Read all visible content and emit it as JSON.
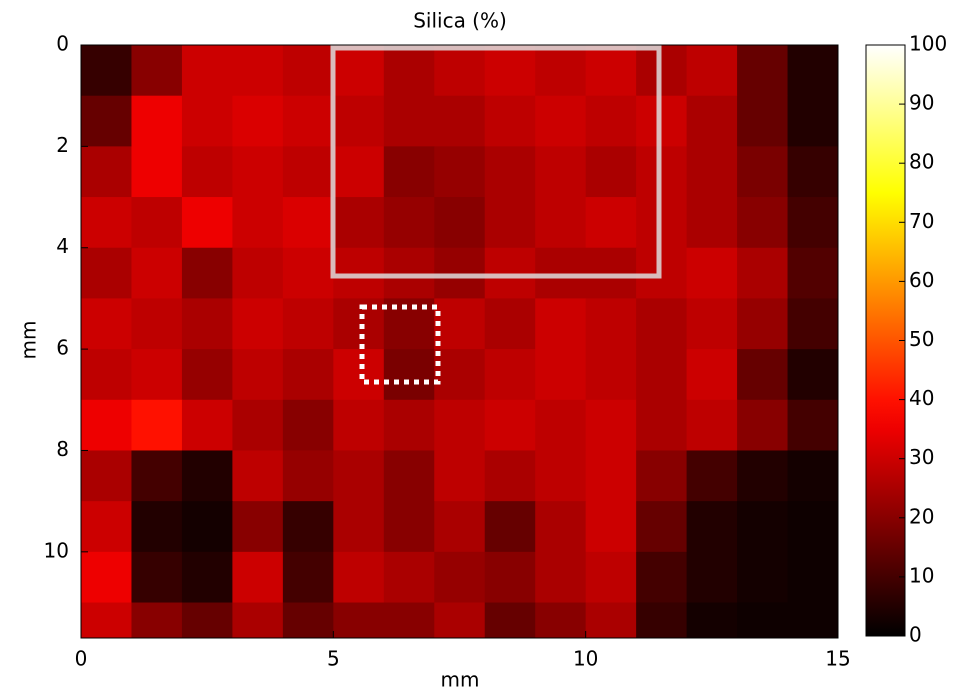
{
  "chart_data": {
    "type": "heatmap",
    "title": "Silica (%)",
    "xlabel": "mm",
    "ylabel": "mm",
    "colormap": "hot",
    "xbins": [
      0,
      1,
      2,
      3,
      4,
      5,
      6,
      7,
      8,
      9,
      10,
      11,
      12,
      13,
      14,
      15
    ],
    "ybins": [
      0,
      1,
      2,
      3,
      4,
      5,
      6,
      7,
      8,
      9,
      10,
      11,
      11.7
    ],
    "z": [
      [
        8,
        20,
        30,
        30,
        28,
        30,
        25,
        28,
        30,
        28,
        30,
        25,
        28,
        15,
        5
      ],
      [
        15,
        35,
        30,
        32,
        30,
        28,
        25,
        25,
        28,
        30,
        28,
        30,
        25,
        15,
        5
      ],
      [
        25,
        35,
        28,
        30,
        28,
        30,
        20,
        22,
        25,
        28,
        25,
        28,
        25,
        18,
        8
      ],
      [
        30,
        28,
        35,
        30,
        32,
        25,
        22,
        20,
        25,
        28,
        30,
        28,
        25,
        20,
        10
      ],
      [
        25,
        30,
        20,
        28,
        30,
        28,
        25,
        22,
        28,
        25,
        25,
        28,
        30,
        25,
        12
      ],
      [
        30,
        28,
        25,
        30,
        28,
        25,
        20,
        28,
        25,
        30,
        28,
        25,
        28,
        22,
        10
      ],
      [
        28,
        30,
        22,
        28,
        25,
        30,
        18,
        25,
        28,
        30,
        28,
        25,
        30,
        15,
        5
      ],
      [
        35,
        40,
        30,
        25,
        20,
        28,
        25,
        28,
        30,
        28,
        30,
        25,
        28,
        20,
        10
      ],
      [
        25,
        10,
        5,
        28,
        22,
        25,
        20,
        28,
        25,
        28,
        30,
        20,
        10,
        5,
        3
      ],
      [
        30,
        5,
        3,
        20,
        8,
        25,
        20,
        25,
        15,
        25,
        30,
        15,
        5,
        3,
        2
      ],
      [
        35,
        8,
        5,
        30,
        10,
        28,
        25,
        22,
        20,
        25,
        28,
        10,
        5,
        3,
        2
      ],
      [
        30,
        20,
        15,
        25,
        15,
        20,
        20,
        25,
        15,
        20,
        25,
        8,
        3,
        2,
        2
      ]
    ],
    "xlim": [
      0,
      15
    ],
    "ylim": [
      0,
      11.7
    ],
    "xticks": [
      0,
      5,
      10,
      15
    ],
    "yticks": [
      0,
      2,
      4,
      6,
      8,
      10
    ],
    "clim": [
      0,
      100
    ],
    "cticks": [
      0,
      10,
      20,
      30,
      40,
      50,
      60,
      70,
      80,
      90,
      100
    ]
  }
}
